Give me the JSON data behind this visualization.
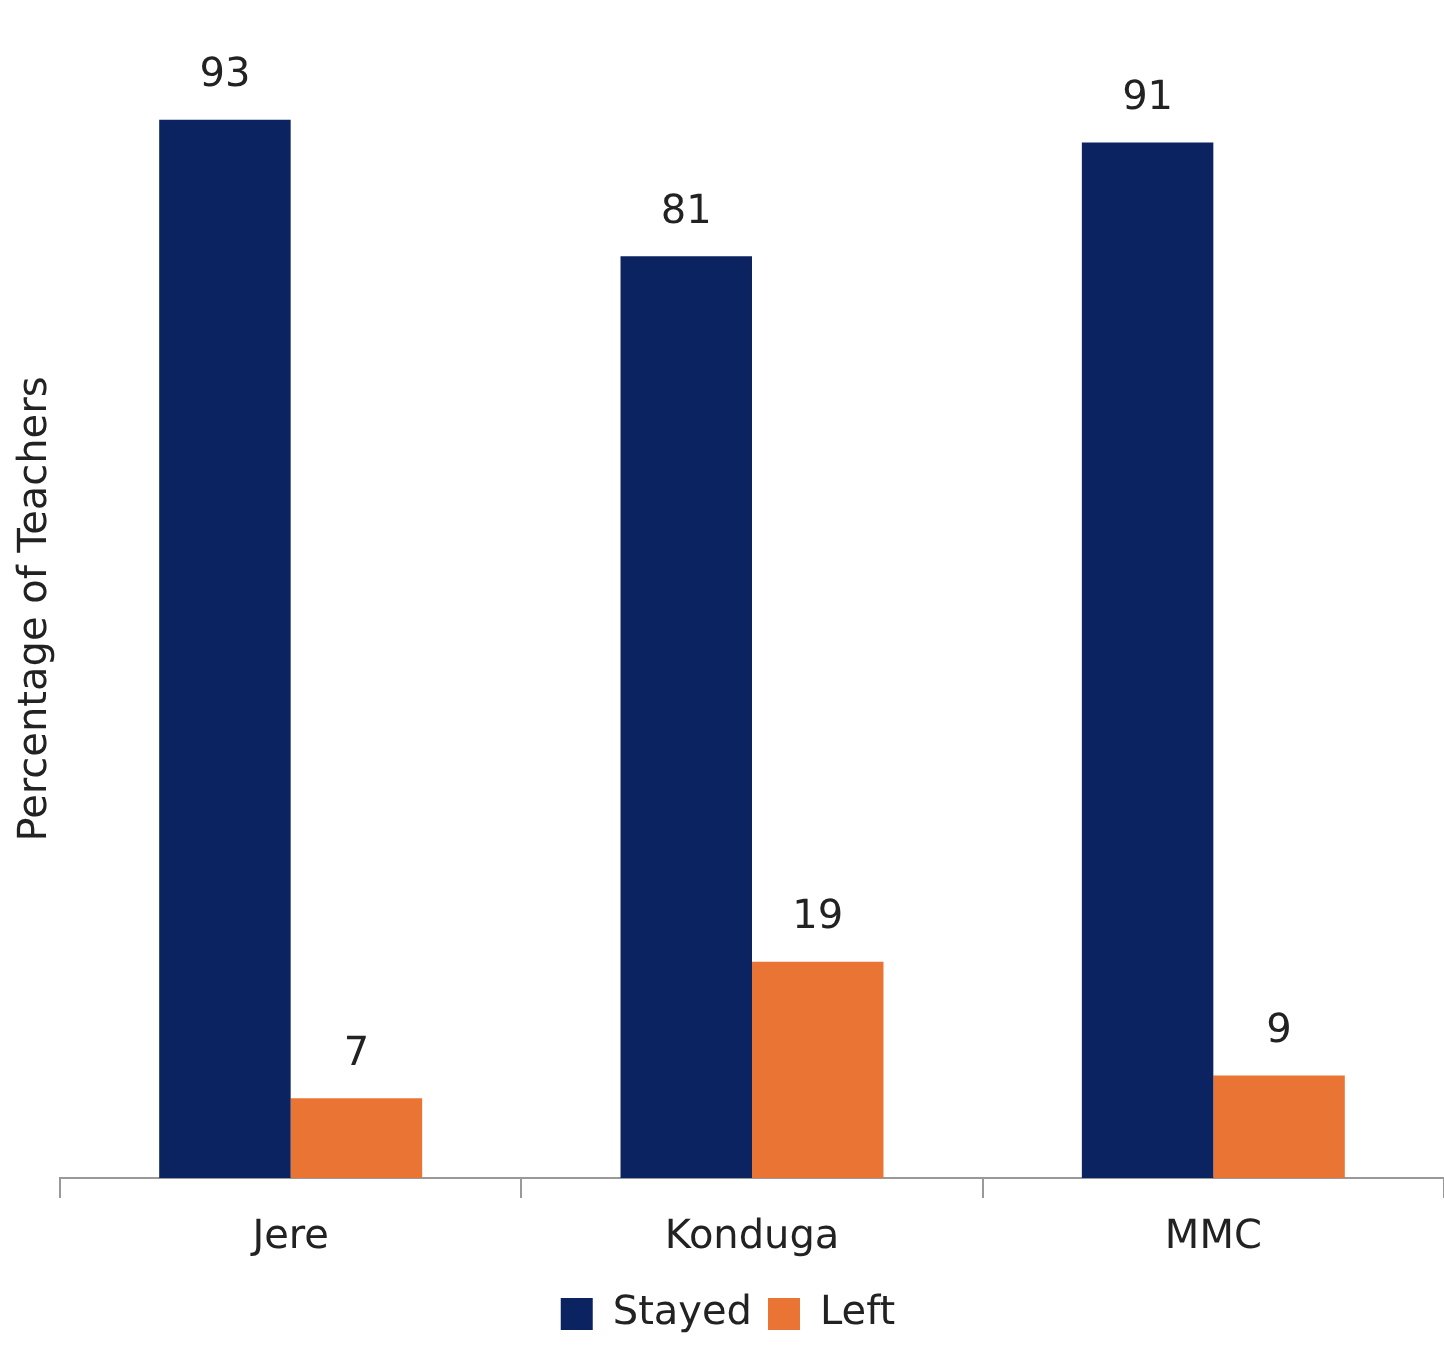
{
  "chart_data": {
    "type": "bar",
    "ylabel": "Percentage of Teachers",
    "categories": [
      "Jere",
      "Konduga",
      "MMC"
    ],
    "series": [
      {
        "name": "Stayed",
        "color": "#0b2360",
        "values": [
          93,
          81,
          91
        ]
      },
      {
        "name": "Left",
        "color": "#ea7434",
        "values": [
          7,
          19,
          9
        ]
      }
    ],
    "data_labels": true,
    "legend": "bottom",
    "grid": false
  }
}
